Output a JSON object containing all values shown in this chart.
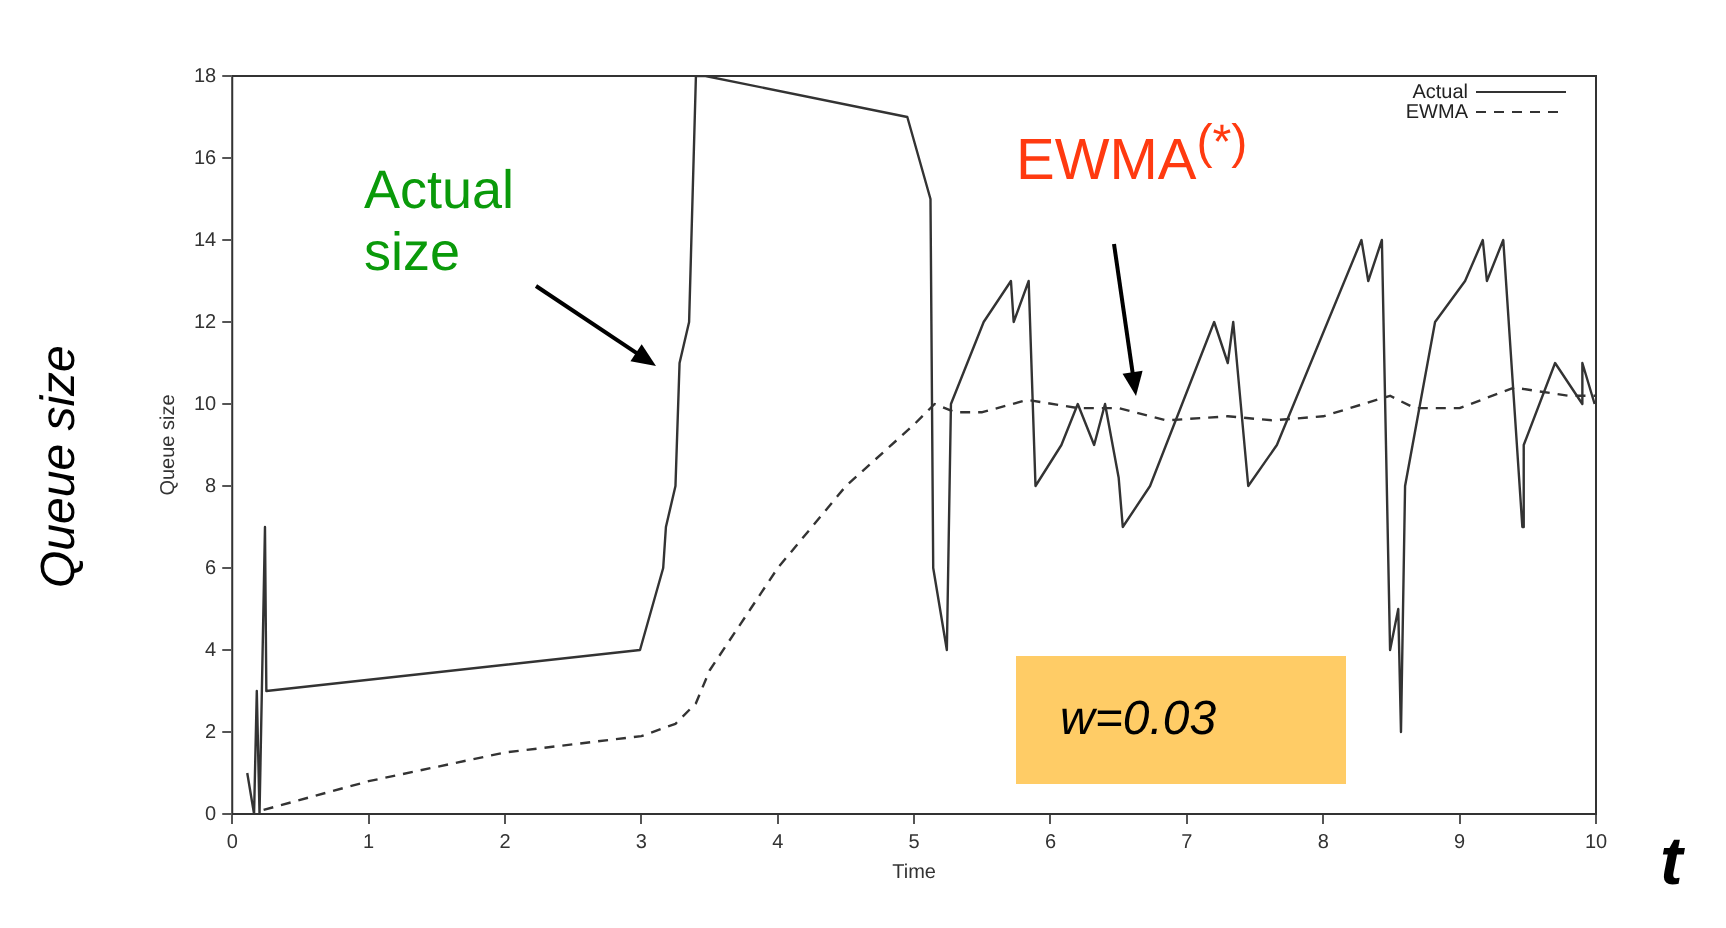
{
  "chart_data": {
    "type": "line",
    "xlabel": "Time",
    "ylabel": "Queue size",
    "xlim": [
      0,
      10
    ],
    "ylim": [
      0,
      18
    ],
    "xticks": [
      0,
      1,
      2,
      3,
      4,
      5,
      6,
      7,
      8,
      9,
      10
    ],
    "yticks": [
      0,
      2,
      4,
      6,
      8,
      10,
      12,
      14,
      16,
      18
    ],
    "grid": false,
    "legend": "top right",
    "marker": "none",
    "series": [
      {
        "name": "Actual",
        "color": "#333333",
        "line_style": "solid",
        "x": [
          0.11,
          0.16,
          0.18,
          0.2,
          0.24,
          0.25,
          2.99,
          3.16,
          3.18,
          3.25,
          3.28,
          3.35,
          3.4,
          3.47,
          4.95,
          5.12,
          5.14,
          5.24,
          5.27,
          5.51,
          5.71,
          5.73,
          5.84,
          5.89,
          6.08,
          6.2,
          6.32,
          6.4,
          6.5,
          6.53,
          6.73,
          7.2,
          7.3,
          7.34,
          7.45,
          7.66,
          8.28,
          8.33,
          8.43,
          8.49,
          8.55,
          8.57,
          8.6,
          8.82,
          9.04,
          9.17,
          9.2,
          9.32,
          9.46,
          9.47,
          9.7,
          9.9,
          9.9,
          9.99
        ],
        "values": [
          1,
          0,
          3,
          0,
          7,
          3,
          4,
          6,
          7,
          8,
          11,
          12,
          18,
          18,
          17,
          15,
          6,
          4,
          10,
          12,
          13,
          12,
          13,
          8,
          9,
          10,
          9,
          10,
          8.2,
          7,
          8,
          12,
          11,
          12,
          8,
          9,
          14,
          13,
          14,
          4,
          5,
          2,
          8,
          12,
          13,
          14,
          13,
          14,
          7,
          9,
          11,
          10,
          11,
          10
        ]
      },
      {
        "name": "EWMA",
        "color": "#333333",
        "line_style": "dashed",
        "x": [
          0.23,
          1,
          2,
          3,
          3.25,
          3.4,
          3.5,
          3.8,
          4,
          4.5,
          5,
          5.15,
          5.3,
          5.5,
          5.83,
          6.2,
          6.5,
          6.85,
          7.3,
          7.63,
          8.0,
          8.49,
          8.67,
          9.0,
          9.4,
          9.8,
          10
        ],
        "values": [
          0.1,
          0.8,
          1.5,
          1.9,
          2.2,
          2.7,
          3.5,
          5,
          6,
          8,
          9.5,
          10,
          9.8,
          9.8,
          10.1,
          9.9,
          9.9,
          9.6,
          9.7,
          9.6,
          9.7,
          10.2,
          9.9,
          9.9,
          10.4,
          10.2,
          10.2
        ]
      }
    ],
    "annotations": [
      "Actual size",
      "EWMA$^{(*)}$",
      "w=0.03",
      "Queue size",
      "t"
    ]
  }
}
